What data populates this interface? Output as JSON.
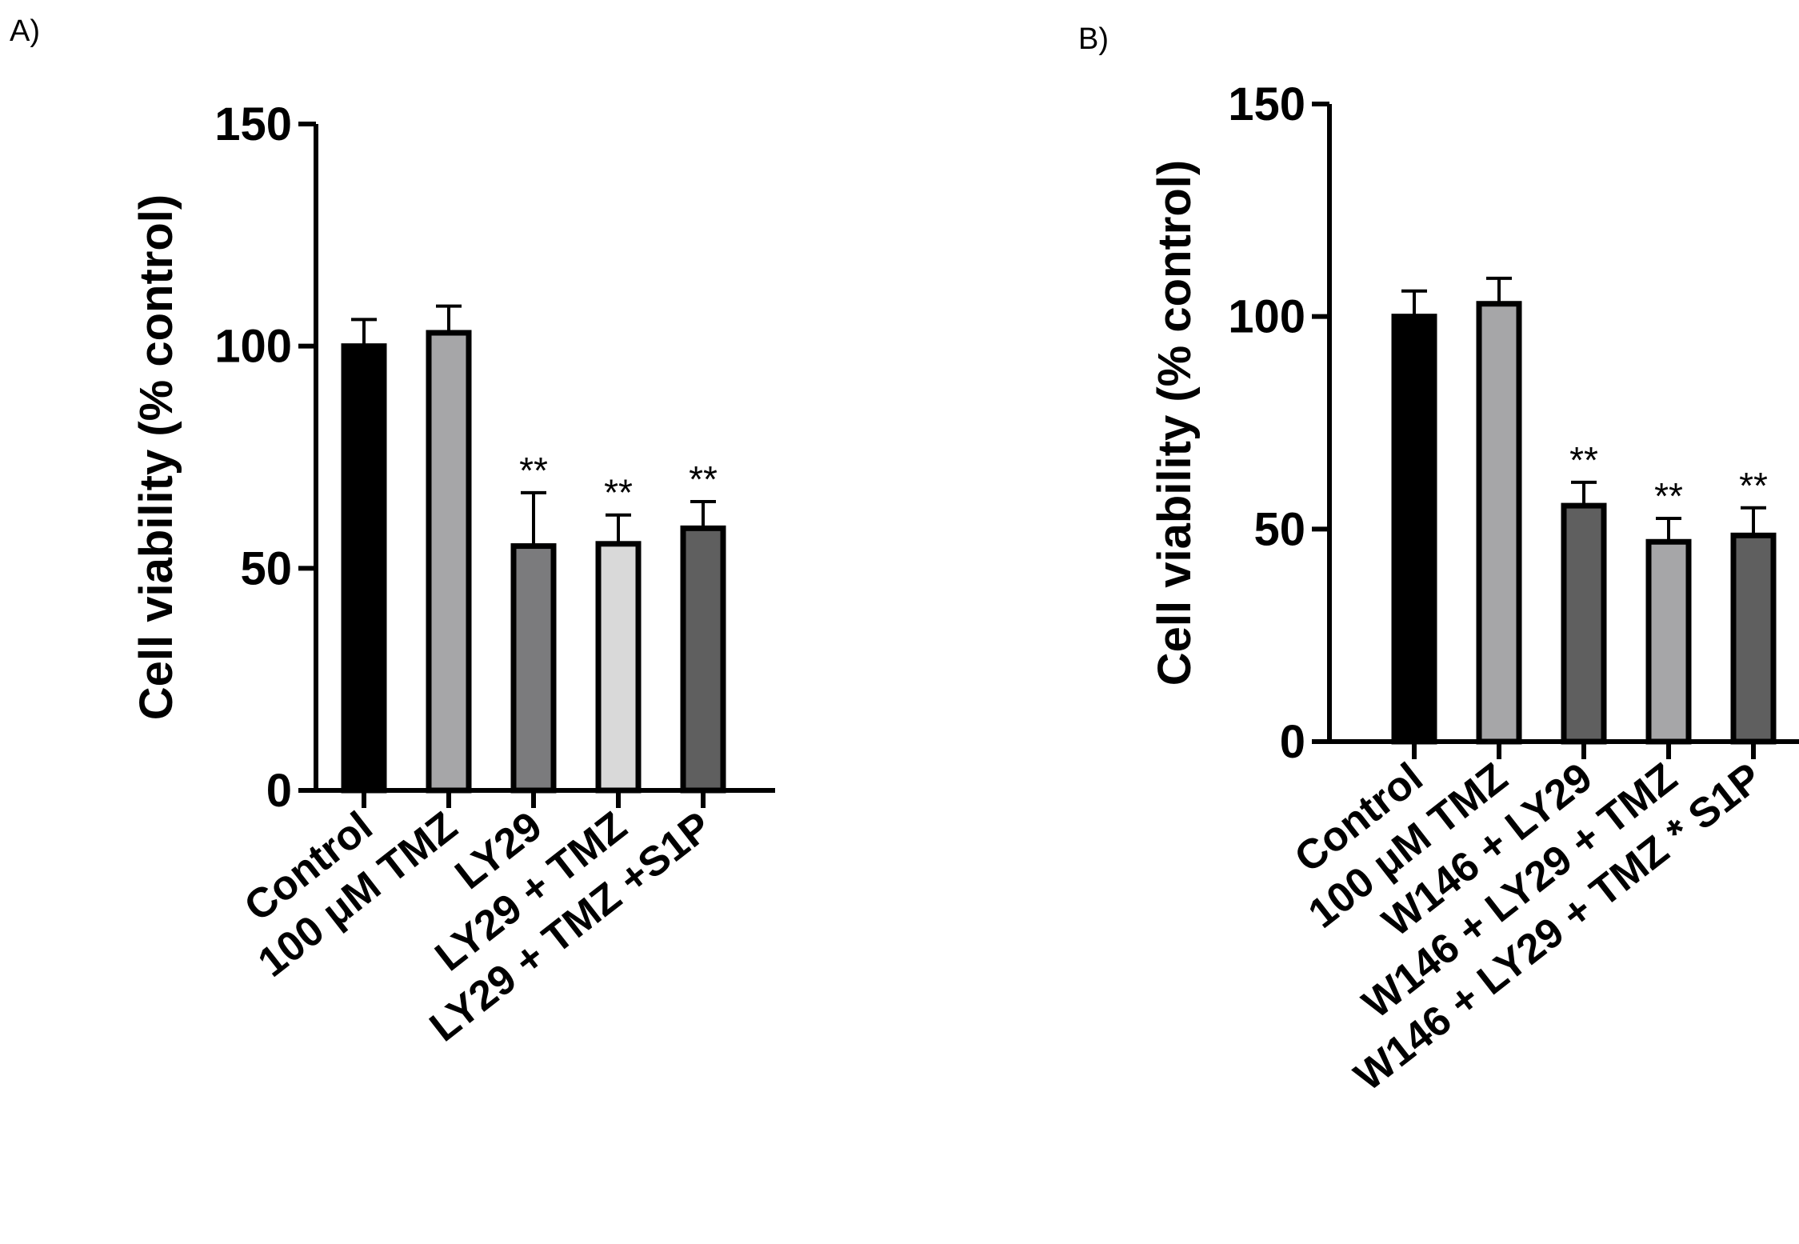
{
  "panels": [
    {
      "label": "A)"
    },
    {
      "label": "B)"
    }
  ],
  "chart_data": [
    {
      "type": "bar",
      "panel": "A)",
      "title": "",
      "xlabel": "",
      "ylabel": "Cell viability (% control)",
      "ylim": [
        0,
        150
      ],
      "yticks": [
        0,
        50,
        100,
        150
      ],
      "categories": [
        "Control",
        "100 μM TMZ",
        "LY29",
        "LY29 + TMZ",
        "LY29 + TMZ +S1P"
      ],
      "values": [
        100,
        103,
        55,
        55.5,
        59
      ],
      "errors": [
        6,
        6,
        12,
        6.5,
        6
      ],
      "significance": [
        "",
        "",
        "**",
        "**",
        "**"
      ],
      "colors": [
        "#000000",
        "#a6a6a8",
        "#7b7b7d",
        "#d9d9d9",
        "#5f5f5f"
      ]
    },
    {
      "type": "bar",
      "panel": "B)",
      "title": "",
      "xlabel": "",
      "ylabel": "Cell viability (% control)",
      "ylim": [
        0,
        150
      ],
      "yticks": [
        0,
        50,
        100,
        150
      ],
      "categories": [
        "Control",
        "100 μM TMZ",
        "W146 + LY29",
        "W146 + LY29 + TMZ",
        "W146 + LY29 + TMZ * S1P"
      ],
      "values": [
        100,
        103,
        55.5,
        47,
        48.5
      ],
      "errors": [
        6,
        6,
        5.5,
        5.5,
        6.5
      ],
      "significance": [
        "",
        "",
        "**",
        "**",
        "**"
      ],
      "colors": [
        "#000000",
        "#a6a6a8",
        "#5f5f5f",
        "#a6a6a8",
        "#5f5f5f"
      ]
    }
  ]
}
